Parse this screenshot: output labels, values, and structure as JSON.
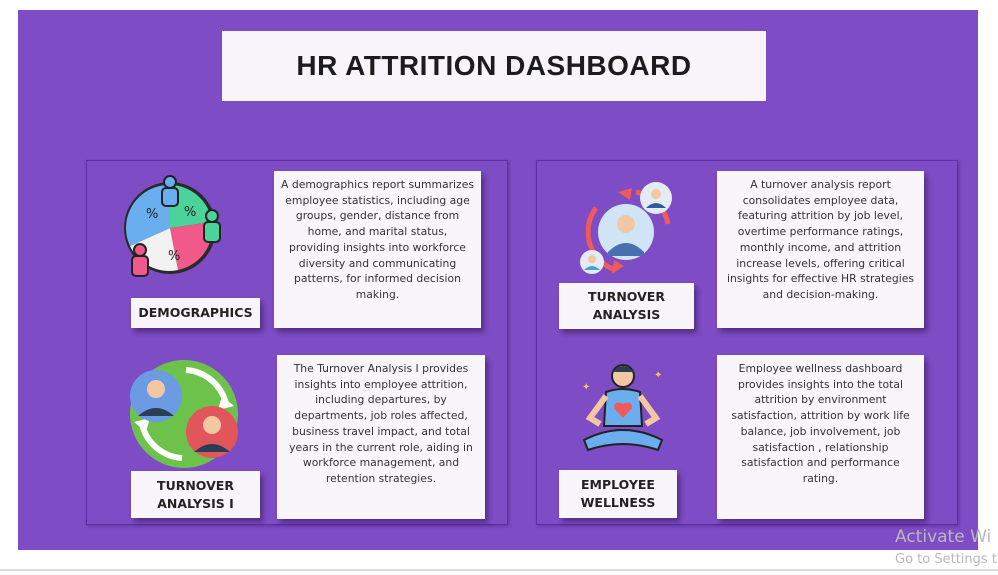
{
  "title": "HR ATTRITION DASHBOARD",
  "cards": {
    "demographics": {
      "label": "DEMOGRAPHICS",
      "description": "A demographics report summarizes employee statistics, including age groups, gender, distance from home, and marital status, providing insights into workforce  diversity and communicating patterns, for informed decision making.",
      "icon": "pie-chart-people-icon"
    },
    "turnover_analysis_1": {
      "label": "TURNOVER\nANALYSIS I",
      "description": "The Turnover Analysis I provides insights into employee attrition, including departures, by departments, job roles affected, business travel impact, and total years in the current role, aiding in workforce management, and retention strategies.",
      "icon": "employee-exchange-icon"
    },
    "turnover_analysis": {
      "label": "TURNOVER\nANALYSIS",
      "description": "A turnover analysis report consolidates employee data, featuring attrition by job level, overtime performance ratings, monthly income, and attrition increase levels, offering critical insights for effective HR strategies and decision-making.",
      "icon": "employee-cycle-icon"
    },
    "employee_wellness": {
      "label": "EMPLOYEE\nWELLNESS",
      "description": "Employee wellness dashboard provides insights into the total attrition by environment satisfaction, attrition by work life balance, job involvement, job satisfaction , relationship satisfaction and performance rating.",
      "icon": "meditation-icon"
    }
  },
  "watermark": {
    "line1": "Activate Wi",
    "line2": "Go to Settings t"
  },
  "colors": {
    "background": "#7e4cc4",
    "card": "#f8f6fb"
  }
}
